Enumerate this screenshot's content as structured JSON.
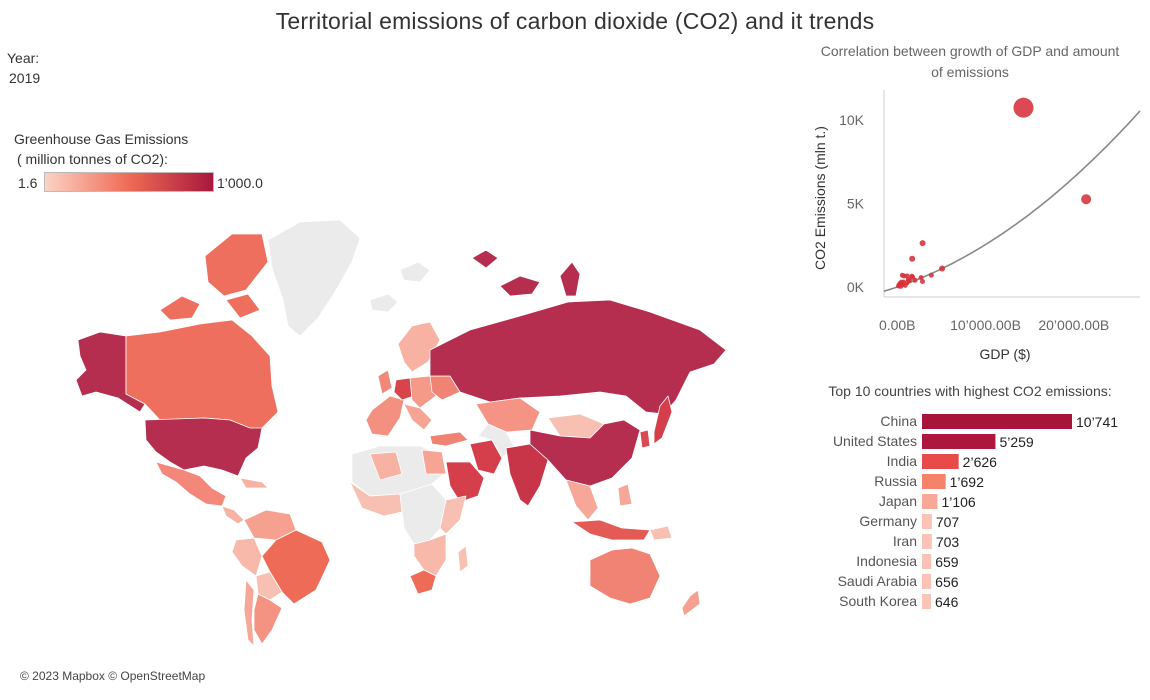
{
  "title": "Territorial emissions of carbon dioxide (CO2) and it trends",
  "filter": {
    "label": "Year:",
    "value": "2019"
  },
  "legend": {
    "title_line1": "Greenhouse Gas Emissions",
    "title_line2": "( million tonnes of CO2):",
    "min_label": "1.6",
    "max_label": "1’000.0",
    "color_low": "#fbd3c5",
    "color_mid": "#ef6b55",
    "color_high": "#a8173e"
  },
  "attribution": "© 2023 Mapbox © OpenStreetMap",
  "colors": {
    "no_data": "#ebebeb",
    "curve": "#888888",
    "point": "#d6313a",
    "axis_text": "#666666"
  },
  "chart_data": [
    {
      "type": "scatter",
      "title": "Correlation between growth of GDP and amount of emissions",
      "xlabel": "GDP ($)",
      "ylabel": "CO2 Emissions (mln t.)",
      "x_ticks": [
        "0.00B",
        "10’000.00B",
        "20’000.00B"
      ],
      "y_ticks": [
        "0K",
        "5K",
        "10K"
      ],
      "x_tick_values": [
        0,
        10000,
        20000
      ],
      "y_tick_values": [
        0,
        5000,
        10000
      ],
      "xlim": [
        -1500,
        27500
      ],
      "ylim": [
        -600,
        11800
      ],
      "grid": false,
      "trendline": {
        "type": "polynomial",
        "coefficients": [
          0,
          0.18,
          7.4e-06
        ]
      },
      "points": [
        {
          "x": 14300,
          "y": 10741,
          "size": 10
        },
        {
          "x": 21400,
          "y": 5259,
          "size": 5
        },
        {
          "x": 2870,
          "y": 2626,
          "size": 3
        },
        {
          "x": 1690,
          "y": 1692,
          "size": 3
        },
        {
          "x": 5080,
          "y": 1106,
          "size": 3
        },
        {
          "x": 3860,
          "y": 707,
          "size": 2.5
        },
        {
          "x": 580,
          "y": 703,
          "size": 2.5
        },
        {
          "x": 1120,
          "y": 659,
          "size": 2.5
        },
        {
          "x": 790,
          "y": 656,
          "size": 2.5
        },
        {
          "x": 1650,
          "y": 646,
          "size": 2.5
        },
        {
          "x": 1740,
          "y": 580,
          "size": 2.5
        },
        {
          "x": 2700,
          "y": 560,
          "size": 2.5
        },
        {
          "x": 1260,
          "y": 450,
          "size": 2.5
        },
        {
          "x": 2010,
          "y": 400,
          "size": 2.5
        },
        {
          "x": 1390,
          "y": 380,
          "size": 2.5
        },
        {
          "x": 2860,
          "y": 330,
          "size": 2.5
        },
        {
          "x": 700,
          "y": 300,
          "size": 2.5
        },
        {
          "x": 450,
          "y": 280,
          "size": 2.5
        },
        {
          "x": 1100,
          "y": 250,
          "size": 2.5
        },
        {
          "x": 300,
          "y": 200,
          "size": 2.5
        },
        {
          "x": 600,
          "y": 150,
          "size": 2.5
        },
        {
          "x": 200,
          "y": 120,
          "size": 2.5
        },
        {
          "x": 900,
          "y": 100,
          "size": 2.5
        },
        {
          "x": 150,
          "y": 60,
          "size": 2.5
        },
        {
          "x": 400,
          "y": 40,
          "size": 2.5
        }
      ]
    },
    {
      "type": "bar",
      "orientation": "horizontal",
      "title": "Top 10 countries with highest CO2 emissions:",
      "categories": [
        "China",
        "United States",
        "India",
        "Russia",
        "Japan",
        "Germany",
        "Iran",
        "Indonesia",
        "Saudi Arabia",
        "South Korea"
      ],
      "values": [
        10741,
        5259,
        2626,
        1692,
        1106,
        707,
        703,
        659,
        656,
        646
      ],
      "value_labels": [
        "10’741",
        "5’259",
        "2’626",
        "1’692",
        "1’106",
        "707",
        "703",
        "659",
        "656",
        "646"
      ],
      "xlim": [
        0,
        10741
      ],
      "colors": [
        "#a8133a",
        "#ad173d",
        "#e84a4a",
        "#f5826a",
        "#f9a898",
        "#fbc2b6",
        "#fbc2b6",
        "#fbc3b7",
        "#fbc3b7",
        "#fbc4b8"
      ]
    }
  ]
}
